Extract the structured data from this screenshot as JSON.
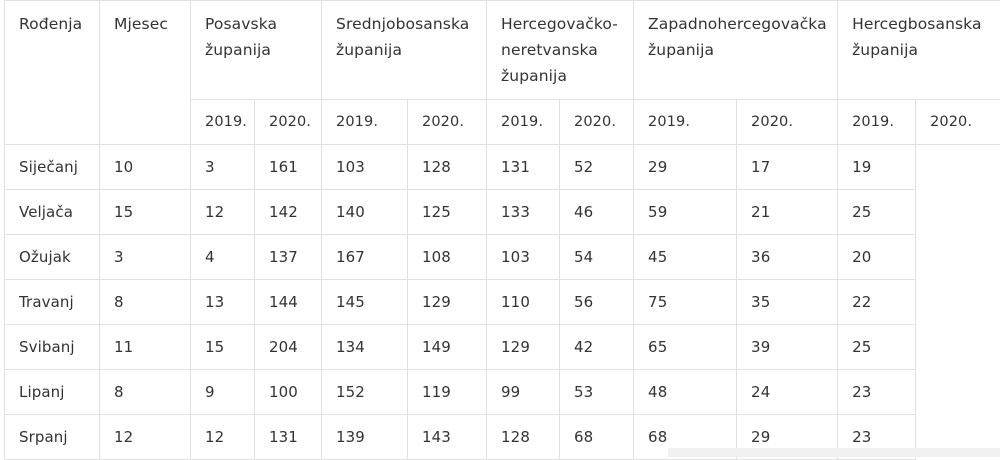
{
  "table": {
    "corner_label": "Rođenja",
    "month_label": "Mjesec",
    "regions": [
      {
        "name": "Posavska županija"
      },
      {
        "name": "Srednjobosanska županija"
      },
      {
        "name": "Hercegovačko-neretvanska županija"
      },
      {
        "name": "Zapadnohercegovačka županija"
      },
      {
        "name": "Hercegbosanska županija"
      }
    ],
    "years": [
      "2019.",
      "2020."
    ],
    "rows": [
      {
        "month": "Siječanj",
        "values": [
          "10",
          "3",
          "161",
          "103",
          "128",
          "131",
          "52",
          "29",
          "17",
          "19"
        ]
      },
      {
        "month": "Veljača",
        "values": [
          "15",
          "12",
          "142",
          "140",
          "125",
          "133",
          "46",
          "59",
          "21",
          "25"
        ]
      },
      {
        "month": "Ožujak",
        "values": [
          "3",
          "4",
          "137",
          "167",
          "108",
          "103",
          "54",
          "45",
          "36",
          "20"
        ]
      },
      {
        "month": "Travanj",
        "values": [
          "8",
          "13",
          "144",
          "145",
          "129",
          "110",
          "56",
          "75",
          "35",
          "22"
        ]
      },
      {
        "month": "Svibanj",
        "values": [
          "11",
          "15",
          "204",
          "134",
          "149",
          "129",
          "42",
          "65",
          "39",
          "25"
        ]
      },
      {
        "month": "Lipanj",
        "values": [
          "8",
          "9",
          "100",
          "152",
          "119",
          "99",
          "53",
          "48",
          "24",
          "23"
        ]
      },
      {
        "month": "Srpanj",
        "values": [
          "12",
          "12",
          "131",
          "139",
          "143",
          "128",
          "68",
          "68",
          "29",
          "23"
        ]
      }
    ]
  }
}
